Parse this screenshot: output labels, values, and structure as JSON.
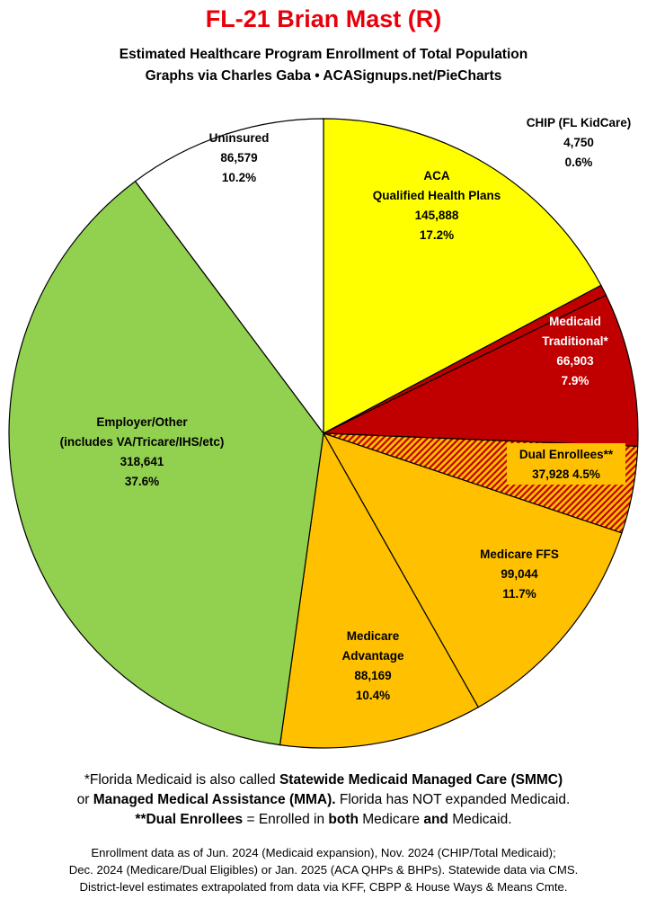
{
  "header": {
    "title": "FL-21 Brian Mast (R)",
    "subtitle_1": "Estimated Healthcare Program Enrollment of Total Population",
    "subtitle_2": "Graphs via Charles Gaba  •  ACASignups.net/PieCharts"
  },
  "chart_data": {
    "type": "pie",
    "title": "FL-21 Brian Mast (R)",
    "slices": [
      {
        "lines": [
          "ACA",
          "Qualified Health Plans"
        ],
        "value": 145888,
        "value_label": "145,888",
        "percent": "17.2%",
        "color": "#ffff00",
        "label_color": "#000000"
      },
      {
        "lines": [
          "CHIP (FL KidCare)"
        ],
        "value": 4750,
        "value_label": "4,750",
        "percent": "0.6%",
        "color": "#c00000",
        "label_color": "#000000"
      },
      {
        "lines": [
          "Medicaid",
          "Traditional*"
        ],
        "value": 66903,
        "value_label": "66,903",
        "percent": "7.9%",
        "color": "#c00000",
        "label_color": "#ffffff"
      },
      {
        "lines": [
          "Dual Enrollees**"
        ],
        "value": 37928,
        "value_label": "37,928",
        "percent": "4.5%",
        "color": "#ffc000",
        "hatch": "#c00000",
        "label_color": "#000000"
      },
      {
        "lines": [
          "Medicare FFS"
        ],
        "value": 99044,
        "value_label": "99,044",
        "percent": "11.7%",
        "color": "#ffc000",
        "label_color": "#000000"
      },
      {
        "lines": [
          "Medicare",
          "Advantage"
        ],
        "value": 88169,
        "value_label": "88,169",
        "percent": "10.4%",
        "color": "#ffc000",
        "label_color": "#000000"
      },
      {
        "lines": [
          "Employer/Other",
          "(includes VA/Tricare/IHS/etc)"
        ],
        "value": 318641,
        "value_label": "318,641",
        "percent": "37.6%",
        "color": "#92d050",
        "label_color": "#000000"
      },
      {
        "lines": [
          "Uninsured"
        ],
        "value": 86579,
        "value_label": "86,579",
        "percent": "10.2%",
        "color": "#ffffff",
        "label_color": "#000000"
      }
    ]
  },
  "footnotes": {
    "line1_a": "*Florida Medicaid is also called ",
    "line1_b": "Statewide Medicaid Managed Care (SMMC)",
    "line2_a": "or ",
    "line2_b": "Managed Medical Assistance (MMA).",
    "line2_c": " Florida has NOT expanded Medicaid.",
    "line3_a": "**Dual Enrollees",
    "line3_b": " = Enrolled in ",
    "line3_c": "both",
    "line3_d": " Medicare ",
    "line3_e": "and",
    "line3_f": " Medicaid."
  },
  "source": {
    "line1": "Enrollment data as of Jun. 2024 (Medicaid expansion), Nov. 2024 (CHIP/Total Medicaid);",
    "line2": "Dec. 2024 (Medicare/Dual Eligibles) or Jan. 2025 (ACA QHPs & BHPs). Statewide data via CMS.",
    "line3": "District-level estimates extrapolated from data via KFF, CBPP & House Ways & Means Cmte."
  }
}
